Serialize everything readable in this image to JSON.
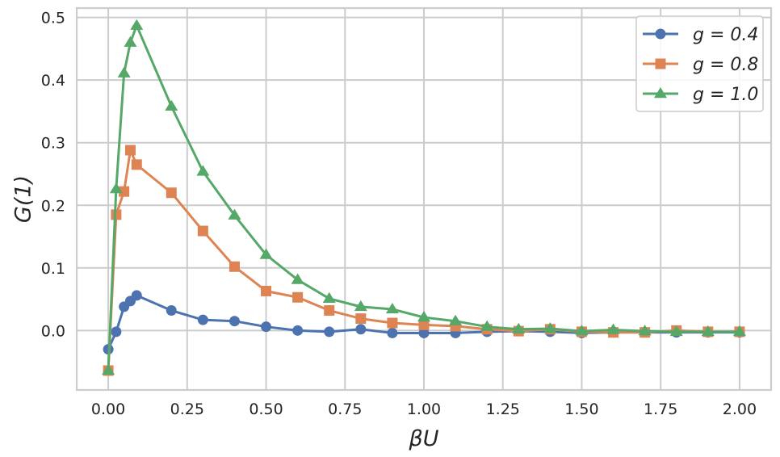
{
  "chart_data": {
    "type": "line",
    "xlabel": "βU",
    "ylabel": "G(1)",
    "xlim": [
      -0.1,
      2.1
    ],
    "ylim": [
      -0.095,
      0.515
    ],
    "grid": true,
    "legend_position": "top-right",
    "x_ticks": [
      "0.00",
      "0.25",
      "0.50",
      "0.75",
      "1.00",
      "1.25",
      "1.50",
      "1.75",
      "2.00"
    ],
    "y_ticks": [
      "0.0",
      "0.1",
      "0.2",
      "0.3",
      "0.4",
      "0.5"
    ],
    "series": [
      {
        "name": "g = 0.4",
        "marker": "circle",
        "color": "#4c72b0",
        "x": [
          0.0,
          0.025,
          0.05,
          0.07,
          0.09,
          0.2,
          0.3,
          0.4,
          0.5,
          0.6,
          0.7,
          0.8,
          0.9,
          1.0,
          1.1,
          1.2,
          1.3,
          1.4,
          1.5,
          1.6,
          1.7,
          1.8,
          1.9,
          2.0
        ],
        "y": [
          -0.03,
          -0.002,
          0.038,
          0.047,
          0.056,
          0.032,
          0.017,
          0.015,
          0.006,
          0.0,
          -0.002,
          0.002,
          -0.004,
          -0.004,
          -0.004,
          -0.002,
          -0.001,
          -0.002,
          -0.004,
          -0.003,
          -0.003,
          -0.003,
          -0.003,
          -0.003
        ]
      },
      {
        "name": "g = 0.8",
        "marker": "square",
        "color": "#dd8452",
        "x": [
          0.0,
          0.025,
          0.05,
          0.07,
          0.09,
          0.2,
          0.3,
          0.4,
          0.5,
          0.6,
          0.7,
          0.8,
          0.9,
          1.0,
          1.1,
          1.2,
          1.3,
          1.4,
          1.5,
          1.6,
          1.7,
          1.8,
          1.9,
          2.0
        ],
        "y": [
          -0.064,
          0.185,
          0.222,
          0.288,
          0.265,
          0.22,
          0.159,
          0.102,
          0.063,
          0.053,
          0.032,
          0.019,
          0.012,
          0.009,
          0.007,
          0.002,
          -0.001,
          0.002,
          -0.002,
          -0.003,
          -0.003,
          0.0,
          -0.002,
          -0.002
        ]
      },
      {
        "name": "g = 1.0",
        "marker": "triangle",
        "color": "#55a868",
        "x": [
          0.0,
          0.025,
          0.05,
          0.07,
          0.09,
          0.2,
          0.3,
          0.4,
          0.5,
          0.6,
          0.7,
          0.8,
          0.9,
          1.0,
          1.1,
          1.2,
          1.3,
          1.4,
          1.5,
          1.6,
          1.7,
          1.8,
          1.9,
          2.0
        ],
        "y": [
          -0.064,
          0.226,
          0.411,
          0.46,
          0.487,
          0.358,
          0.254,
          0.184,
          0.121,
          0.081,
          0.051,
          0.038,
          0.034,
          0.021,
          0.015,
          0.006,
          0.002,
          0.003,
          -0.001,
          0.001,
          -0.001,
          -0.002,
          -0.002,
          -0.002
        ]
      }
    ]
  }
}
